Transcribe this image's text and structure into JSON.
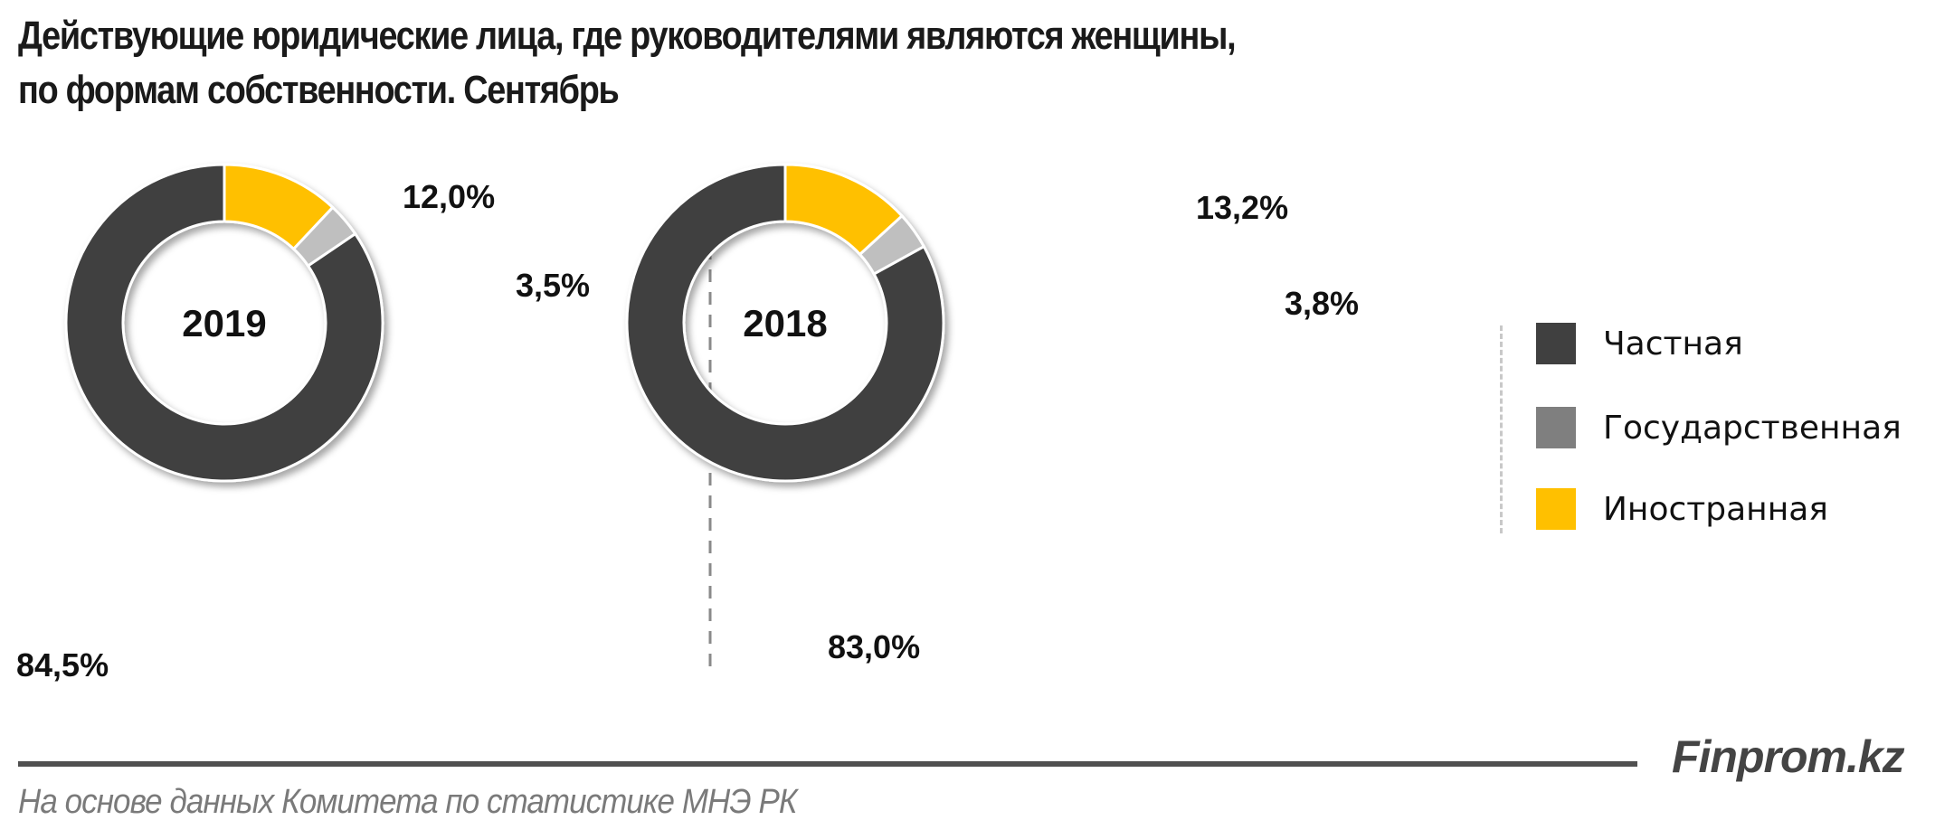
{
  "title": {
    "line1": "Действующие юридические лица, где руководителями являются женщины,",
    "line2": "по формам собственности. Сентябрь"
  },
  "colors": {
    "private": "#404040",
    "state": "#BFBFBF",
    "state_legend": "#7F7F7F",
    "foreign": "#FFC000"
  },
  "donuts": [
    {
      "year": "2019",
      "labels": {
        "foreign": "12,0%",
        "state": "3,5%",
        "private": "84,5%"
      }
    },
    {
      "year": "2018",
      "labels": {
        "foreign": "13,2%",
        "state": "3,8%",
        "private": "83,0%"
      }
    }
  ],
  "legend": {
    "items": [
      {
        "label": "Частная",
        "color": "#404040"
      },
      {
        "label": "Государственная",
        "color": "#7F7F7F"
      },
      {
        "label": "Иностранная",
        "color": "#FFC000"
      }
    ]
  },
  "footer": {
    "brand": "Finprom.kz",
    "source": "На основе данных  Комитета по статистике МНЭ РК"
  },
  "chart_data": [
    {
      "type": "pie",
      "subtype": "donut",
      "title": "2019",
      "categories": [
        "Иностранная",
        "Государственная",
        "Частная"
      ],
      "values": [
        12.0,
        3.5,
        84.5
      ],
      "unit": "%",
      "colors": [
        "#FFC000",
        "#BFBFBF",
        "#404040"
      ]
    },
    {
      "type": "pie",
      "subtype": "donut",
      "title": "2018",
      "categories": [
        "Иностранная",
        "Государственная",
        "Частная"
      ],
      "values": [
        13.2,
        3.8,
        83.0
      ],
      "unit": "%",
      "colors": [
        "#FFC000",
        "#BFBFBF",
        "#404040"
      ]
    }
  ]
}
